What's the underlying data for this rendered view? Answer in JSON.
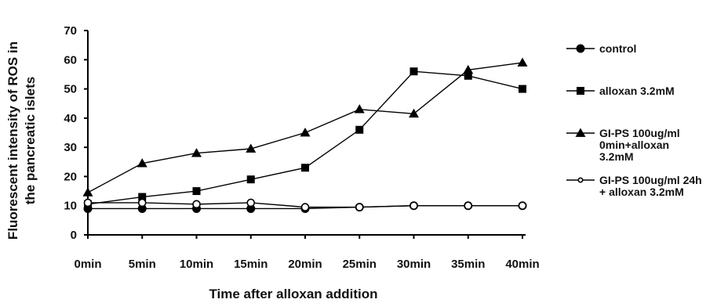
{
  "chart_data": {
    "type": "line",
    "title": "",
    "xlabel": "Time after alloxan addition",
    "ylabel_lines": [
      "Fluorescent intensity of ROS in",
      "the pancreatic islets"
    ],
    "ylim": [
      0,
      70
    ],
    "yticks": [
      0,
      10,
      20,
      30,
      40,
      50,
      60,
      70
    ],
    "categories": [
      "0min",
      "5min",
      "10min",
      "15min",
      "20min",
      "25min",
      "30min",
      "35min",
      "40min"
    ],
    "grid": false,
    "legend_position": "right",
    "series": [
      {
        "name": "control",
        "marker": "circle",
        "color": "#000000",
        "values": [
          9,
          9,
          9,
          9,
          9,
          9.5,
          10,
          10,
          10
        ]
      },
      {
        "name": "alloxan 3.2mM",
        "marker": "square",
        "color": "#000000",
        "values": [
          10.5,
          13,
          15,
          19,
          23,
          36,
          56,
          54.5,
          50
        ]
      },
      {
        "name_lines": [
          "GI-PS 100ug/ml",
          "0min+alloxan",
          "3.2mM"
        ],
        "marker": "triangle",
        "color": "#000000",
        "values": [
          14.5,
          24.5,
          28,
          29.5,
          35,
          43,
          41.5,
          56.5,
          59
        ]
      },
      {
        "name_lines": [
          "GI-PS 100ug/ml 24h",
          "+ alloxan 3.2mM"
        ],
        "marker": "open-circle",
        "color": "#000000",
        "values": [
          11,
          11,
          10.5,
          11,
          9.5,
          9.5,
          10,
          10,
          10
        ]
      }
    ]
  }
}
